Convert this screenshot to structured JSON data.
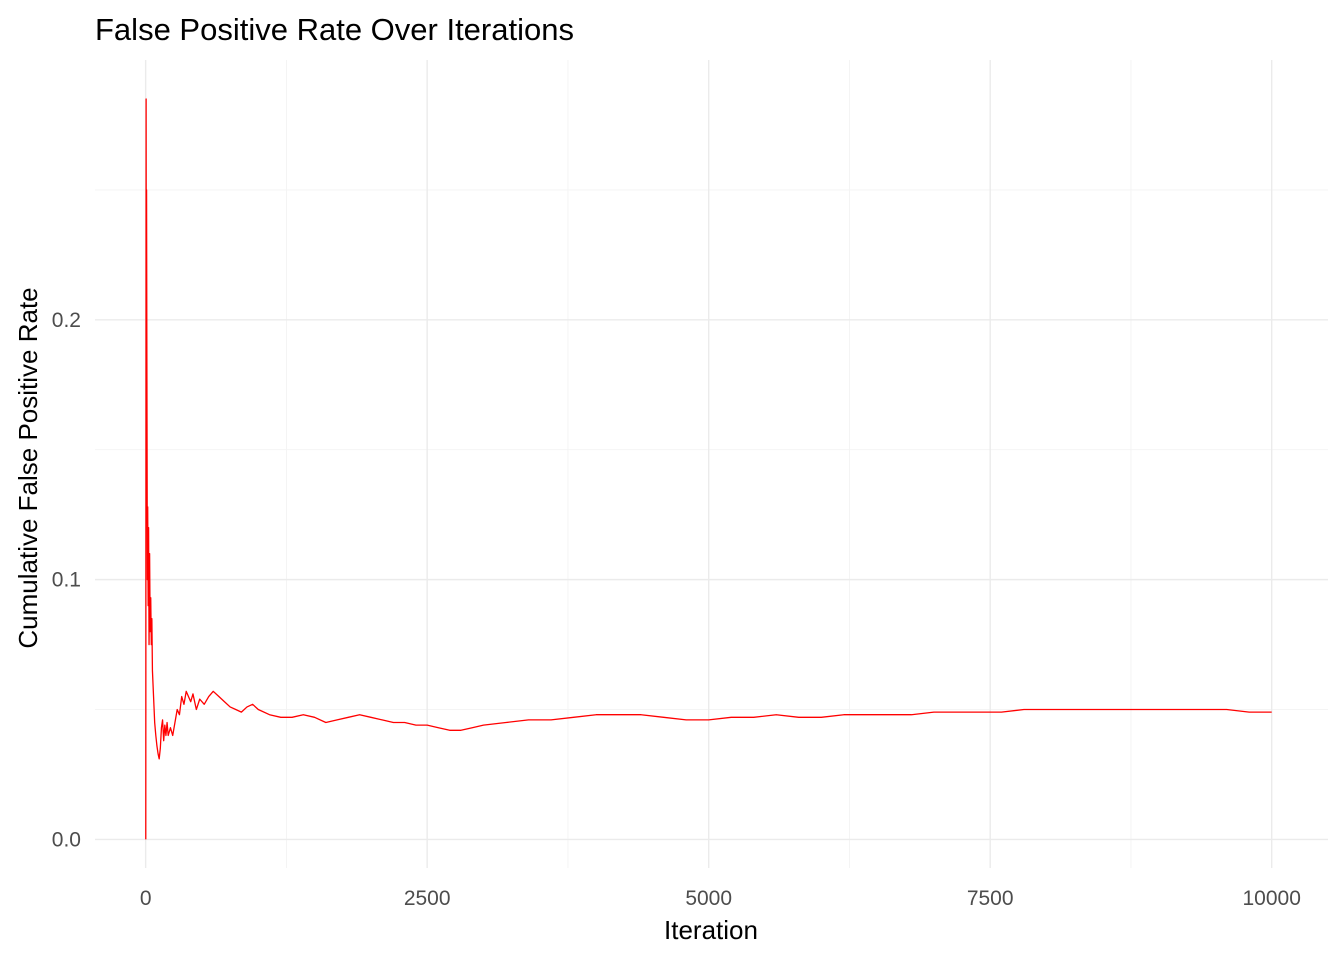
{
  "chart_data": {
    "type": "line",
    "title": "False Positive Rate Over Iterations",
    "xlabel": "Iteration",
    "ylabel": "Cumulative False Positive Rate",
    "xlim": [
      -450,
      10500
    ],
    "ylim": [
      -0.011,
      0.3
    ],
    "x_ticks": [
      0,
      2500,
      5000,
      7500,
      10000
    ],
    "x_tick_labels": [
      "0",
      "2500",
      "5000",
      "7500",
      "10000"
    ],
    "y_ticks": [
      0.0,
      0.1,
      0.2
    ],
    "y_tick_labels": [
      "0.0",
      "0.1",
      "0.2"
    ],
    "grid": true,
    "legend": "none",
    "series": [
      {
        "color": "#ff0000",
        "x": [
          1,
          4,
          6,
          8,
          10,
          12,
          15,
          18,
          22,
          26,
          30,
          35,
          40,
          45,
          50,
          55,
          60,
          70,
          80,
          90,
          100,
          110,
          120,
          130,
          140,
          150,
          160,
          170,
          180,
          190,
          200,
          220,
          240,
          260,
          280,
          300,
          320,
          340,
          360,
          380,
          400,
          420,
          450,
          480,
          520,
          560,
          600,
          650,
          700,
          750,
          800,
          850,
          900,
          950,
          1000,
          1100,
          1200,
          1300,
          1400,
          1500,
          1600,
          1700,
          1800,
          1900,
          2000,
          2100,
          2200,
          2300,
          2400,
          2500,
          2600,
          2700,
          2800,
          2900,
          3000,
          3200,
          3400,
          3600,
          3800,
          4000,
          4200,
          4400,
          4600,
          4800,
          5000,
          5200,
          5400,
          5600,
          5800,
          6000,
          6200,
          6400,
          6600,
          6800,
          7000,
          7200,
          7400,
          7600,
          7800,
          8000,
          8200,
          8400,
          8600,
          8800,
          9000,
          9200,
          9400,
          9600,
          9800,
          10000
        ],
        "y": [
          0.0,
          0.285,
          0.17,
          0.25,
          0.2,
          0.16,
          0.1,
          0.128,
          0.09,
          0.12,
          0.075,
          0.11,
          0.08,
          0.093,
          0.075,
          0.085,
          0.065,
          0.055,
          0.045,
          0.04,
          0.036,
          0.033,
          0.031,
          0.035,
          0.043,
          0.046,
          0.038,
          0.044,
          0.04,
          0.045,
          0.04,
          0.043,
          0.04,
          0.045,
          0.05,
          0.048,
          0.055,
          0.052,
          0.057,
          0.055,
          0.053,
          0.056,
          0.05,
          0.054,
          0.052,
          0.055,
          0.057,
          0.055,
          0.053,
          0.051,
          0.05,
          0.049,
          0.051,
          0.052,
          0.05,
          0.048,
          0.047,
          0.047,
          0.048,
          0.047,
          0.045,
          0.046,
          0.047,
          0.048,
          0.047,
          0.046,
          0.045,
          0.045,
          0.044,
          0.044,
          0.043,
          0.042,
          0.042,
          0.043,
          0.044,
          0.045,
          0.046,
          0.046,
          0.047,
          0.048,
          0.048,
          0.048,
          0.047,
          0.046,
          0.046,
          0.047,
          0.047,
          0.048,
          0.047,
          0.047,
          0.048,
          0.048,
          0.048,
          0.048,
          0.049,
          0.049,
          0.049,
          0.049,
          0.05,
          0.05,
          0.05,
          0.05,
          0.05,
          0.05,
          0.05,
          0.05,
          0.05,
          0.05,
          0.049,
          0.049
        ]
      }
    ]
  }
}
